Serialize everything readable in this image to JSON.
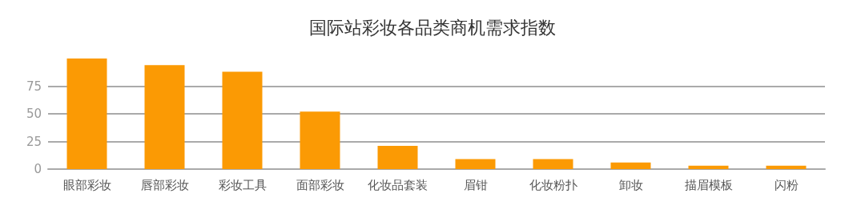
{
  "chart_data": {
    "type": "bar",
    "title": "国际站彩妆各品类商机需求指数",
    "categories": [
      "眼部彩妆",
      "唇部彩妆",
      "彩妆工具",
      "面部彩妆",
      "化妆品套装",
      "眉钳",
      "化妆粉扑",
      "卸妆",
      "描眉模板",
      "闪粉"
    ],
    "values": [
      100,
      94,
      88,
      52,
      21,
      9,
      9,
      6,
      3,
      3
    ],
    "color": "#fb9a04",
    "ylim": [
      0,
      100
    ],
    "yticks": [
      0,
      25,
      50,
      75
    ],
    "grid": "y"
  }
}
